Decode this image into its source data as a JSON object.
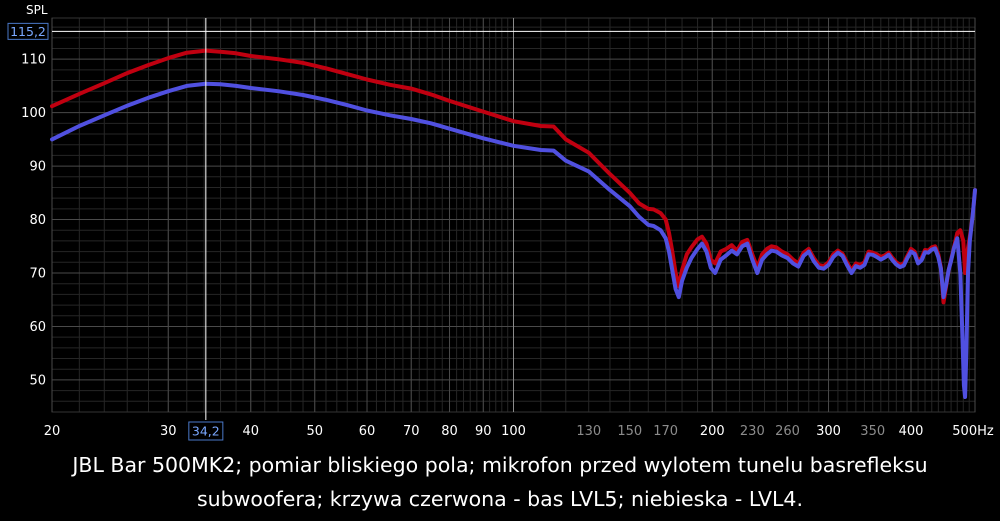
{
  "chart_data": {
    "type": "line",
    "ylabel": "SPL",
    "xunit": "Hz",
    "xscale": "log",
    "xlim": [
      20,
      500
    ],
    "ylim": [
      44,
      117.7
    ],
    "grid": true,
    "background": "#000000",
    "xticks": [
      {
        "v": 20,
        "label": "20",
        "major": true
      },
      {
        "v": 30,
        "label": "30",
        "major": true
      },
      {
        "v": 40,
        "label": "40",
        "major": true
      },
      {
        "v": 50,
        "label": "50",
        "major": true
      },
      {
        "v": 60,
        "label": "60",
        "major": true
      },
      {
        "v": 70,
        "label": "70",
        "major": true
      },
      {
        "v": 80,
        "label": "80",
        "major": true
      },
      {
        "v": 90,
        "label": "90",
        "major": true
      },
      {
        "v": 100,
        "label": "100",
        "major": true
      },
      {
        "v": 130,
        "label": "130",
        "major": false
      },
      {
        "v": 150,
        "label": "150",
        "major": false
      },
      {
        "v": 170,
        "label": "170",
        "major": false
      },
      {
        "v": 200,
        "label": "200",
        "major": true
      },
      {
        "v": 230,
        "label": "230",
        "major": false
      },
      {
        "v": 260,
        "label": "260",
        "major": false
      },
      {
        "v": 300,
        "label": "300",
        "major": true
      },
      {
        "v": 350,
        "label": "350",
        "major": false
      },
      {
        "v": 400,
        "label": "400",
        "major": true
      },
      {
        "v": 500,
        "label": "500Hz",
        "major": true
      }
    ],
    "yticks": [
      50,
      60,
      70,
      80,
      90,
      100,
      110
    ],
    "cursor": {
      "x": 34.2,
      "y": 115.2,
      "x_label": "34,2",
      "y_label": "115,2"
    },
    "series": [
      {
        "color": "#c00010",
        "points": [
          [
            20,
            101.2
          ],
          [
            22,
            103.5
          ],
          [
            24,
            105.5
          ],
          [
            26,
            107.4
          ],
          [
            28,
            108.9
          ],
          [
            30,
            110.2
          ],
          [
            32,
            111.2
          ],
          [
            34.2,
            111.6
          ],
          [
            36,
            111.4
          ],
          [
            38,
            111.1
          ],
          [
            40,
            110.6
          ],
          [
            44,
            110.0
          ],
          [
            48,
            109.3
          ],
          [
            52,
            108.3
          ],
          [
            56,
            107.2
          ],
          [
            60,
            106.2
          ],
          [
            65,
            105.2
          ],
          [
            70,
            104.5
          ],
          [
            75,
            103.4
          ],
          [
            80,
            102.2
          ],
          [
            90,
            100.2
          ],
          [
            100,
            98.4
          ],
          [
            110,
            97.5
          ],
          [
            115,
            97.4
          ],
          [
            120,
            95.0
          ],
          [
            130,
            92.5
          ],
          [
            140,
            88.5
          ],
          [
            150,
            85.0
          ],
          [
            155,
            83.0
          ],
          [
            160,
            82.0
          ],
          [
            163,
            81.9
          ],
          [
            167,
            81.2
          ],
          [
            170,
            80.0
          ],
          [
            172,
            77.5
          ],
          [
            174,
            74.0
          ],
          [
            176,
            70.0
          ],
          [
            178,
            67.5
          ],
          [
            180,
            70.5
          ],
          [
            183,
            73.5
          ],
          [
            186,
            74.8
          ],
          [
            190,
            76.3
          ],
          [
            193,
            76.8
          ],
          [
            196,
            75.5
          ],
          [
            199,
            72.5
          ],
          [
            202,
            71.8
          ],
          [
            206,
            74.0
          ],
          [
            210,
            74.5
          ],
          [
            214,
            75.2
          ],
          [
            218,
            74.2
          ],
          [
            222,
            75.8
          ],
          [
            226,
            76.2
          ],
          [
            230,
            73.5
          ],
          [
            234,
            71.0
          ],
          [
            238,
            73.5
          ],
          [
            242,
            74.5
          ],
          [
            246,
            75.0
          ],
          [
            250,
            74.8
          ],
          [
            255,
            74.0
          ],
          [
            260,
            73.5
          ],
          [
            265,
            72.5
          ],
          [
            270,
            71.8
          ],
          [
            275,
            73.8
          ],
          [
            280,
            74.5
          ],
          [
            285,
            72.8
          ],
          [
            290,
            71.5
          ],
          [
            295,
            71.3
          ],
          [
            300,
            72.0
          ],
          [
            305,
            73.5
          ],
          [
            310,
            74.2
          ],
          [
            315,
            73.6
          ],
          [
            320,
            72.0
          ],
          [
            325,
            70.5
          ],
          [
            330,
            71.8
          ],
          [
            335,
            71.5
          ],
          [
            340,
            72.0
          ],
          [
            345,
            74.0
          ],
          [
            350,
            73.8
          ],
          [
            355,
            73.5
          ],
          [
            360,
            73.0
          ],
          [
            365,
            73.3
          ],
          [
            370,
            73.8
          ],
          [
            375,
            72.8
          ],
          [
            380,
            72.0
          ],
          [
            385,
            71.5
          ],
          [
            390,
            71.8
          ],
          [
            395,
            73.2
          ],
          [
            400,
            74.5
          ],
          [
            405,
            74.0
          ],
          [
            410,
            72.2
          ],
          [
            415,
            72.8
          ],
          [
            420,
            74.3
          ],
          [
            425,
            74.2
          ],
          [
            430,
            74.8
          ],
          [
            435,
            75.0
          ],
          [
            440,
            73.5
          ],
          [
            444,
            71.0
          ],
          [
            448,
            64.5
          ],
          [
            452,
            67.5
          ],
          [
            456,
            70.5
          ],
          [
            460,
            72.5
          ],
          [
            465,
            75.0
          ],
          [
            470,
            77.5
          ],
          [
            475,
            78.0
          ],
          [
            480,
            76.0
          ],
          [
            483,
            70.0
          ],
          [
            486,
            73.5
          ],
          [
            490,
            76.0
          ],
          [
            494,
            79.0
          ],
          [
            497,
            82.0
          ],
          [
            500,
            85.5
          ]
        ]
      },
      {
        "color": "#5050e0",
        "points": [
          [
            20,
            95.0
          ],
          [
            22,
            97.5
          ],
          [
            24,
            99.5
          ],
          [
            26,
            101.3
          ],
          [
            28,
            102.8
          ],
          [
            30,
            104.0
          ],
          [
            32,
            105.0
          ],
          [
            34.2,
            105.4
          ],
          [
            36,
            105.3
          ],
          [
            38,
            105.0
          ],
          [
            40,
            104.6
          ],
          [
            44,
            104.0
          ],
          [
            48,
            103.3
          ],
          [
            52,
            102.4
          ],
          [
            56,
            101.4
          ],
          [
            60,
            100.4
          ],
          [
            65,
            99.5
          ],
          [
            70,
            98.8
          ],
          [
            75,
            98.0
          ],
          [
            80,
            97.0
          ],
          [
            90,
            95.2
          ],
          [
            100,
            93.8
          ],
          [
            110,
            93.0
          ],
          [
            115,
            92.9
          ],
          [
            120,
            91.0
          ],
          [
            130,
            89.0
          ],
          [
            140,
            85.5
          ],
          [
            150,
            82.5
          ],
          [
            155,
            80.5
          ],
          [
            160,
            79.0
          ],
          [
            163,
            78.8
          ],
          [
            167,
            78.0
          ],
          [
            170,
            76.5
          ],
          [
            172,
            74.0
          ],
          [
            174,
            70.5
          ],
          [
            176,
            67.0
          ],
          [
            178,
            65.5
          ],
          [
            180,
            68.5
          ],
          [
            183,
            71.0
          ],
          [
            186,
            72.8
          ],
          [
            190,
            74.5
          ],
          [
            193,
            75.5
          ],
          [
            196,
            74.0
          ],
          [
            199,
            71.0
          ],
          [
            202,
            70.0
          ],
          [
            206,
            72.5
          ],
          [
            210,
            73.3
          ],
          [
            214,
            74.2
          ],
          [
            218,
            73.5
          ],
          [
            222,
            75.0
          ],
          [
            226,
            75.5
          ],
          [
            230,
            72.5
          ],
          [
            234,
            70.0
          ],
          [
            238,
            72.5
          ],
          [
            242,
            73.5
          ],
          [
            246,
            74.2
          ],
          [
            250,
            74.0
          ],
          [
            255,
            73.3
          ],
          [
            260,
            72.8
          ],
          [
            265,
            71.8
          ],
          [
            270,
            71.2
          ],
          [
            275,
            73.2
          ],
          [
            280,
            74.0
          ],
          [
            285,
            72.2
          ],
          [
            290,
            71.0
          ],
          [
            295,
            70.8
          ],
          [
            300,
            71.5
          ],
          [
            305,
            73.0
          ],
          [
            310,
            73.8
          ],
          [
            315,
            73.2
          ],
          [
            320,
            71.5
          ],
          [
            325,
            70.0
          ],
          [
            330,
            71.3
          ],
          [
            335,
            71.0
          ],
          [
            340,
            71.5
          ],
          [
            345,
            73.5
          ],
          [
            350,
            73.4
          ],
          [
            355,
            73.0
          ],
          [
            360,
            72.5
          ],
          [
            365,
            72.9
          ],
          [
            370,
            73.4
          ],
          [
            375,
            72.4
          ],
          [
            380,
            71.6
          ],
          [
            385,
            71.1
          ],
          [
            390,
            71.4
          ],
          [
            395,
            72.8
          ],
          [
            400,
            74.0
          ],
          [
            405,
            73.6
          ],
          [
            410,
            71.8
          ],
          [
            415,
            72.4
          ],
          [
            420,
            73.9
          ],
          [
            425,
            73.8
          ],
          [
            430,
            74.4
          ],
          [
            435,
            74.6
          ],
          [
            440,
            73.0
          ],
          [
            444,
            70.8
          ],
          [
            448,
            65.5
          ],
          [
            452,
            67.8
          ],
          [
            456,
            70.5
          ],
          [
            460,
            72.3
          ],
          [
            465,
            74.8
          ],
          [
            470,
            76.5
          ],
          [
            475,
            70.0
          ],
          [
            478,
            60.0
          ],
          [
            481,
            49.0
          ],
          [
            483,
            46.8
          ],
          [
            485,
            55.0
          ],
          [
            488,
            70.0
          ],
          [
            491,
            76.0
          ],
          [
            494,
            78.8
          ],
          [
            497,
            82.0
          ],
          [
            500,
            85.5
          ]
        ]
      }
    ]
  },
  "caption": {
    "line1": "JBL Bar 500MK2; pomiar bliskiego pola; mikrofon przed wylotem tunelu basrefleksu",
    "line2": "subwoofera; krzywa czerwona - bas LVL5; niebieska - LVL4."
  }
}
